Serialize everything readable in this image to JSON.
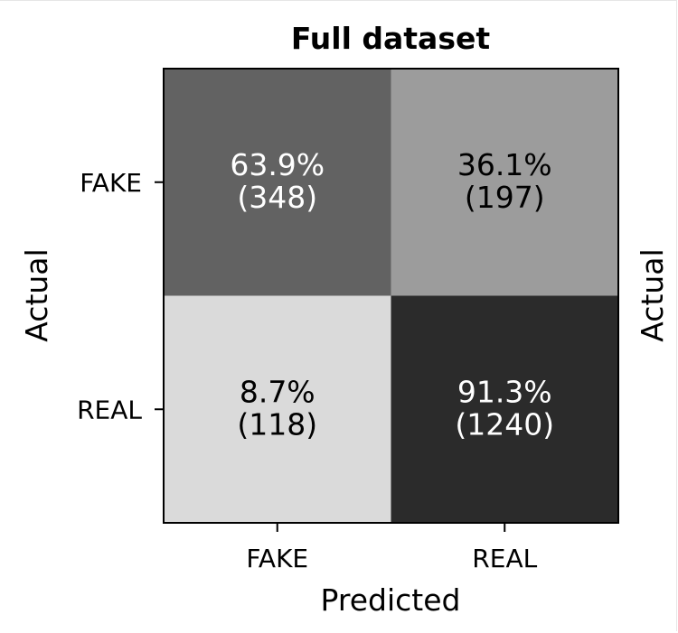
{
  "chart_data": {
    "type": "heatmap",
    "title": "Full dataset",
    "xlabel": "Predicted",
    "ylabel": "Actual",
    "ylabel_right": "Actual",
    "x_categories": [
      "FAKE",
      "REAL"
    ],
    "y_categories": [
      "FAKE",
      "REAL"
    ],
    "cells": [
      [
        {
          "percent": "63.9%",
          "count": "(348)",
          "value": 0.639
        },
        {
          "percent": "36.1%",
          "count": "(197)",
          "value": 0.361
        }
      ],
      [
        {
          "percent": "8.7%",
          "count": "(118)",
          "value": 0.087
        },
        {
          "percent": "91.3%",
          "count": "(1240)",
          "value": 0.913
        }
      ]
    ],
    "colormap": "greys",
    "colors": {
      "low": "#f2f2f2",
      "high": "#1a1a1a",
      "text_dark": "#000000",
      "text_light": "#ffffff",
      "axis": "#000000"
    }
  }
}
